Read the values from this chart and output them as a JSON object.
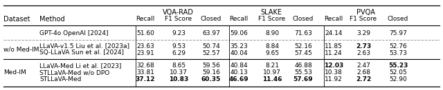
{
  "headers": {
    "dataset": "Dataset",
    "method": "Method",
    "groups": [
      "VQA-RAD",
      "SLAKE",
      "PVQA"
    ],
    "sub": [
      "Recall",
      "F1 Score",
      "Closed"
    ]
  },
  "rows": [
    {
      "method": "GPT-4o OpenAI [2024]",
      "vqa_rad": [
        "51.60",
        "9.23",
        "63.97"
      ],
      "slake": [
        "59.06",
        "8.90",
        "71.63"
      ],
      "pvqa": [
        "24.14",
        "3.29",
        "75.97"
      ],
      "bold": [],
      "group": "gpt"
    },
    {
      "method": "LLaVA-v1.5 Liu et al. [2023a]",
      "vqa_rad": [
        "23.63",
        "9.53",
        "50.74"
      ],
      "slake": [
        "35.23",
        "8.84",
        "52.16"
      ],
      "pvqa": [
        "11.85",
        "2.73",
        "52.76"
      ],
      "bold": [
        "pvqa_1"
      ],
      "group": "wo_med"
    },
    {
      "method": "SQ-LLaVA Sun et al. [2024]",
      "vqa_rad": [
        "23.91",
        "6.29",
        "52.57"
      ],
      "slake": [
        "40.04",
        "9.65",
        "57.45"
      ],
      "pvqa": [
        "11.24",
        "2.63",
        "53.73"
      ],
      "bold": [],
      "group": "wo_med"
    },
    {
      "method": "LLaVA-Med Li et al. [2023]",
      "vqa_rad": [
        "32.68",
        "8.65",
        "59.56"
      ],
      "slake": [
        "40.84",
        "8.21",
        "46.88"
      ],
      "pvqa": [
        "12.03",
        "2.47",
        "55.23"
      ],
      "bold": [
        "pvqa_0",
        "pvqa_2"
      ],
      "group": "med"
    },
    {
      "method": "STLLaVA-Med w/o DPO",
      "vqa_rad": [
        "33.81",
        "10.37",
        "59.16"
      ],
      "slake": [
        "40.13",
        "10.97",
        "55.53"
      ],
      "pvqa": [
        "10.38",
        "2.68",
        "52.05"
      ],
      "bold": [],
      "group": "med"
    },
    {
      "method": "STLLaVA-Med",
      "vqa_rad": [
        "37.12",
        "10.83",
        "60.35"
      ],
      "slake": [
        "46.69",
        "11.46",
        "57.69"
      ],
      "pvqa": [
        "11.92",
        "2.72",
        "52.90"
      ],
      "bold": [
        "vqa_0",
        "vqa_1",
        "vqa_2",
        "slake_0",
        "slake_1",
        "slake_2",
        "pvqa_1"
      ],
      "group": "med"
    }
  ],
  "dataset_labels": [
    {
      "label": "w/o Med-IM",
      "rows": [
        1,
        2
      ]
    },
    {
      "label": "Med-IM",
      "rows": [
        3,
        4,
        5
      ]
    }
  ],
  "bg_color": "#ffffff",
  "font_size": 6.5,
  "header_font_size": 7.0
}
